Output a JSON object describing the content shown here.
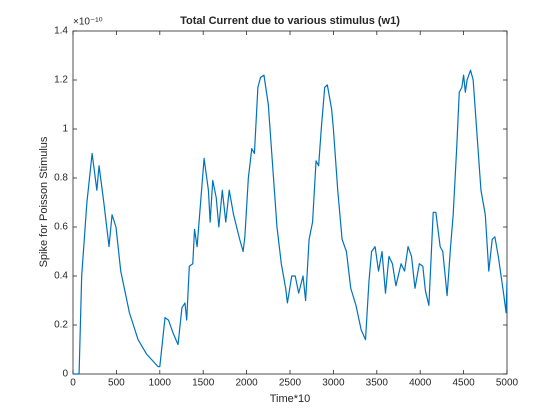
{
  "chart_data": {
    "type": "line",
    "title": "Total Current due to various stimulus (w1)",
    "x_label": "Time*10",
    "y_label": "Spike for Poisson Stimulus",
    "y_multiplier": "×10⁻¹⁰",
    "xlim": [
      0,
      5000
    ],
    "ylim": [
      0,
      1.4
    ],
    "xticks": [
      0,
      500,
      1000,
      1500,
      2000,
      2500,
      3000,
      3500,
      4000,
      4500,
      5000
    ],
    "yticks": [
      0,
      0.2,
      0.4,
      0.6,
      0.8,
      1,
      1.2,
      1.4
    ],
    "grid": false,
    "series": [
      {
        "name": "w1",
        "color": "#0072bd",
        "x": [
          0,
          70,
          100,
          160,
          220,
          275,
          300,
          355,
          415,
          450,
          495,
          550,
          650,
          750,
          850,
          980,
          1000,
          1060,
          1100,
          1150,
          1210,
          1255,
          1290,
          1310,
          1340,
          1380,
          1400,
          1430,
          1510,
          1560,
          1580,
          1610,
          1650,
          1680,
          1720,
          1760,
          1800,
          1850,
          1920,
          1960,
          1980,
          2020,
          2060,
          2090,
          2130,
          2160,
          2200,
          2250,
          2300,
          2350,
          2400,
          2450,
          2470,
          2520,
          2560,
          2600,
          2650,
          2680,
          2720,
          2760,
          2800,
          2830,
          2860,
          2900,
          2930,
          2980,
          3000,
          3050,
          3100,
          3150,
          3200,
          3260,
          3320,
          3370,
          3410,
          3440,
          3480,
          3520,
          3560,
          3600,
          3640,
          3680,
          3720,
          3780,
          3820,
          3860,
          3900,
          3940,
          3990,
          4030,
          4060,
          4100,
          4150,
          4180,
          4230,
          4260,
          4310,
          4350,
          4380,
          4420,
          4450,
          4480,
          4500,
          4520,
          4540,
          4580,
          4610,
          4650,
          4700,
          4750,
          4790,
          4830,
          4860,
          4900,
          4960,
          4990,
          5000
        ],
        "values": [
          0,
          0,
          0.4,
          0.7,
          0.9,
          0.75,
          0.85,
          0.7,
          0.52,
          0.65,
          0.6,
          0.42,
          0.25,
          0.14,
          0.08,
          0.03,
          0.03,
          0.23,
          0.22,
          0.17,
          0.12,
          0.27,
          0.29,
          0.22,
          0.44,
          0.45,
          0.59,
          0.52,
          0.88,
          0.75,
          0.62,
          0.79,
          0.72,
          0.6,
          0.75,
          0.62,
          0.75,
          0.65,
          0.55,
          0.5,
          0.56,
          0.8,
          0.92,
          0.9,
          1.17,
          1.21,
          1.22,
          1.1,
          0.85,
          0.6,
          0.45,
          0.35,
          0.29,
          0.4,
          0.4,
          0.33,
          0.4,
          0.3,
          0.55,
          0.62,
          0.87,
          0.85,
          1,
          1.17,
          1.18,
          1.08,
          1,
          0.75,
          0.55,
          0.5,
          0.35,
          0.28,
          0.18,
          0.14,
          0.38,
          0.5,
          0.52,
          0.42,
          0.5,
          0.33,
          0.48,
          0.45,
          0.36,
          0.45,
          0.42,
          0.52,
          0.48,
          0.35,
          0.45,
          0.44,
          0.34,
          0.28,
          0.66,
          0.66,
          0.52,
          0.5,
          0.32,
          0.52,
          0.65,
          0.92,
          1.15,
          1.17,
          1.22,
          1.15,
          1.2,
          1.24,
          1.2,
          1,
          0.75,
          0.65,
          0.42,
          0.55,
          0.56,
          0.48,
          0.33,
          0.25,
          0.38
        ]
      }
    ]
  }
}
